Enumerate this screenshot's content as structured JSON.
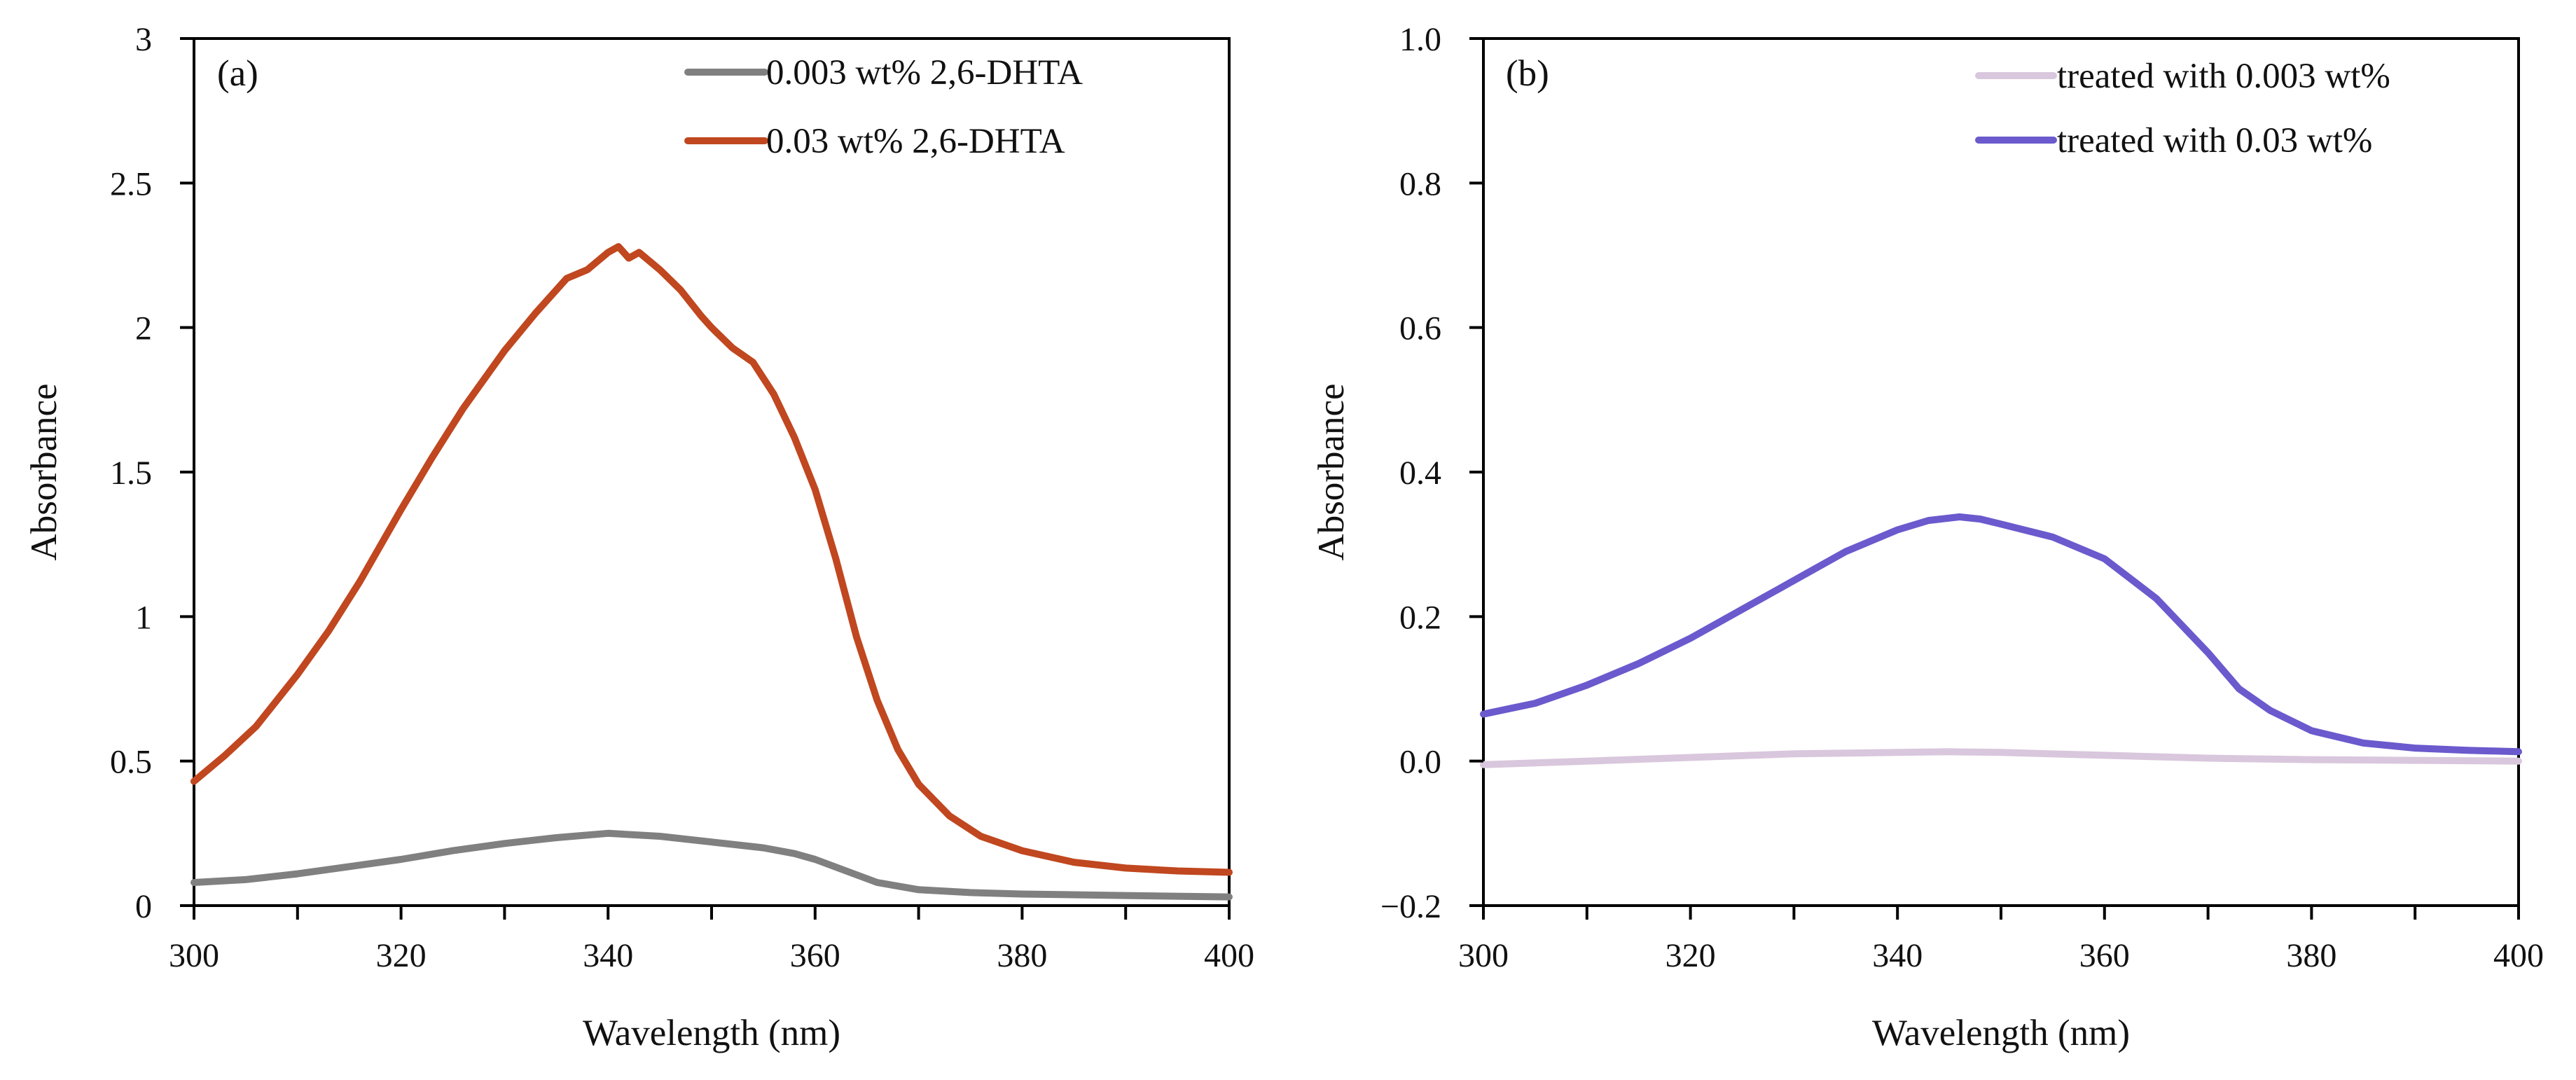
{
  "chart_data": [
    {
      "type": "line",
      "panel_label": "(a)",
      "xlabel": "Wavelength  (nm)",
      "ylabel": "Absorbance",
      "xlim": [
        300,
        400
      ],
      "ylim": [
        0,
        3
      ],
      "xticks": [
        300,
        320,
        340,
        360,
        380,
        400
      ],
      "xtick_labels": [
        "300",
        "320",
        "340",
        "360",
        "380",
        "400"
      ],
      "yticks": [
        0,
        0.5,
        1,
        1.5,
        2,
        2.5,
        3
      ],
      "ytick_labels": [
        "0",
        "0.5",
        "1",
        "1.5",
        "2",
        "2.5",
        "3"
      ],
      "grid": false,
      "legend_position": "top-right",
      "series": [
        {
          "name": "0.003 wt% 2,6-DHTA",
          "color": "#808080",
          "x": [
            300,
            305,
            310,
            315,
            320,
            325,
            330,
            335,
            340,
            345,
            350,
            355,
            358,
            360,
            363,
            366,
            370,
            375,
            380,
            390,
            400
          ],
          "y": [
            0.08,
            0.09,
            0.11,
            0.135,
            0.16,
            0.19,
            0.215,
            0.235,
            0.25,
            0.24,
            0.22,
            0.2,
            0.18,
            0.16,
            0.12,
            0.08,
            0.055,
            0.045,
            0.04,
            0.035,
            0.03
          ]
        },
        {
          "name": "0.03 wt% 2,6-DHTA",
          "color": "#C0471F",
          "x": [
            300,
            303,
            306,
            310,
            313,
            316,
            320,
            323,
            326,
            330,
            333,
            336,
            338,
            340,
            341,
            342,
            343,
            345,
            347,
            349,
            350,
            352,
            354,
            356,
            358,
            360,
            362,
            364,
            366,
            368,
            370,
            373,
            376,
            380,
            385,
            390,
            395,
            400
          ],
          "y": [
            0.43,
            0.52,
            0.62,
            0.8,
            0.95,
            1.12,
            1.37,
            1.55,
            1.72,
            1.92,
            2.05,
            2.17,
            2.2,
            2.26,
            2.28,
            2.24,
            2.26,
            2.2,
            2.13,
            2.04,
            2.0,
            1.93,
            1.88,
            1.77,
            1.62,
            1.44,
            1.2,
            0.93,
            0.71,
            0.54,
            0.42,
            0.31,
            0.24,
            0.19,
            0.15,
            0.13,
            0.12,
            0.115
          ]
        }
      ]
    },
    {
      "type": "line",
      "panel_label": "(b)",
      "xlabel": "Wavelength  (nm)",
      "ylabel": "Absorbance",
      "xlim": [
        300,
        400
      ],
      "ylim": [
        -0.2,
        1.0
      ],
      "xticks": [
        300,
        320,
        340,
        360,
        380,
        400
      ],
      "xtick_labels": [
        "300",
        "320",
        "340",
        "360",
        "380",
        "400"
      ],
      "yticks": [
        -0.2,
        0,
        0.2,
        0.4,
        0.6,
        0.8,
        1.0
      ],
      "ytick_labels": [
        "−0.2",
        "0.0",
        "0.2",
        "0.4",
        "0.6",
        "0.8",
        "1.0"
      ],
      "grid": false,
      "legend_position": "top-right",
      "series": [
        {
          "name": "treated with 0.003 wt%",
          "color": "#D9C7DD",
          "x": [
            300,
            310,
            320,
            330,
            340,
            345,
            350,
            360,
            370,
            380,
            390,
            400
          ],
          "y": [
            -0.005,
            0.0,
            0.005,
            0.01,
            0.012,
            0.013,
            0.012,
            0.008,
            0.004,
            0.002,
            0.001,
            0.0
          ]
        },
        {
          "name": "treated with 0.03 wt%",
          "color": "#6A5ACD",
          "x": [
            300,
            305,
            310,
            315,
            320,
            325,
            330,
            335,
            340,
            343,
            346,
            348,
            350,
            355,
            360,
            365,
            370,
            373,
            376,
            380,
            385,
            390,
            395,
            400
          ],
          "y": [
            0.065,
            0.08,
            0.105,
            0.135,
            0.17,
            0.21,
            0.25,
            0.29,
            0.32,
            0.333,
            0.338,
            0.335,
            0.328,
            0.31,
            0.28,
            0.225,
            0.15,
            0.1,
            0.07,
            0.042,
            0.025,
            0.018,
            0.015,
            0.013
          ]
        }
      ]
    }
  ]
}
